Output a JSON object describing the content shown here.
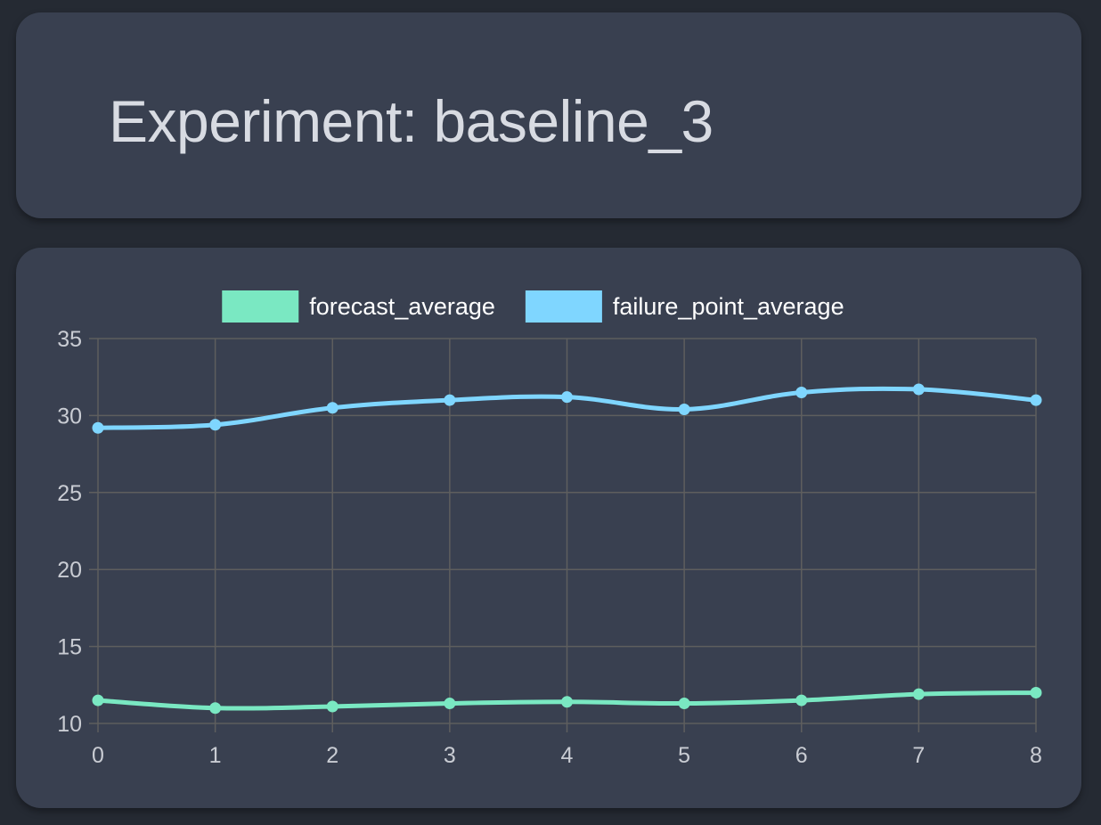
{
  "page": {
    "title": "Experiment: baseline_3"
  },
  "colors": {
    "background": "#252a33",
    "card": "#394050",
    "grid": "#5e5e5e",
    "forecast_average": "#7ae8c2",
    "failure_point_average": "#7fd6ff"
  },
  "chart_data": {
    "type": "line",
    "title": "",
    "xlabel": "",
    "ylabel": "",
    "x": [
      0,
      1,
      2,
      3,
      4,
      5,
      6,
      7,
      8
    ],
    "xlim": [
      0,
      8
    ],
    "ylim": [
      10,
      35
    ],
    "yticks": [
      10,
      15,
      20,
      25,
      30,
      35
    ],
    "grid": true,
    "smooth": true,
    "legend_position": "top-center",
    "series": [
      {
        "name": "forecast_average",
        "color": "#7ae8c2",
        "values": [
          11.5,
          11.0,
          11.1,
          11.3,
          11.4,
          11.3,
          11.5,
          11.9,
          12.0
        ]
      },
      {
        "name": "failure_point_average",
        "color": "#7fd6ff",
        "values": [
          29.2,
          29.4,
          30.5,
          31.0,
          31.2,
          30.4,
          31.5,
          31.7,
          31.0
        ]
      }
    ]
  }
}
